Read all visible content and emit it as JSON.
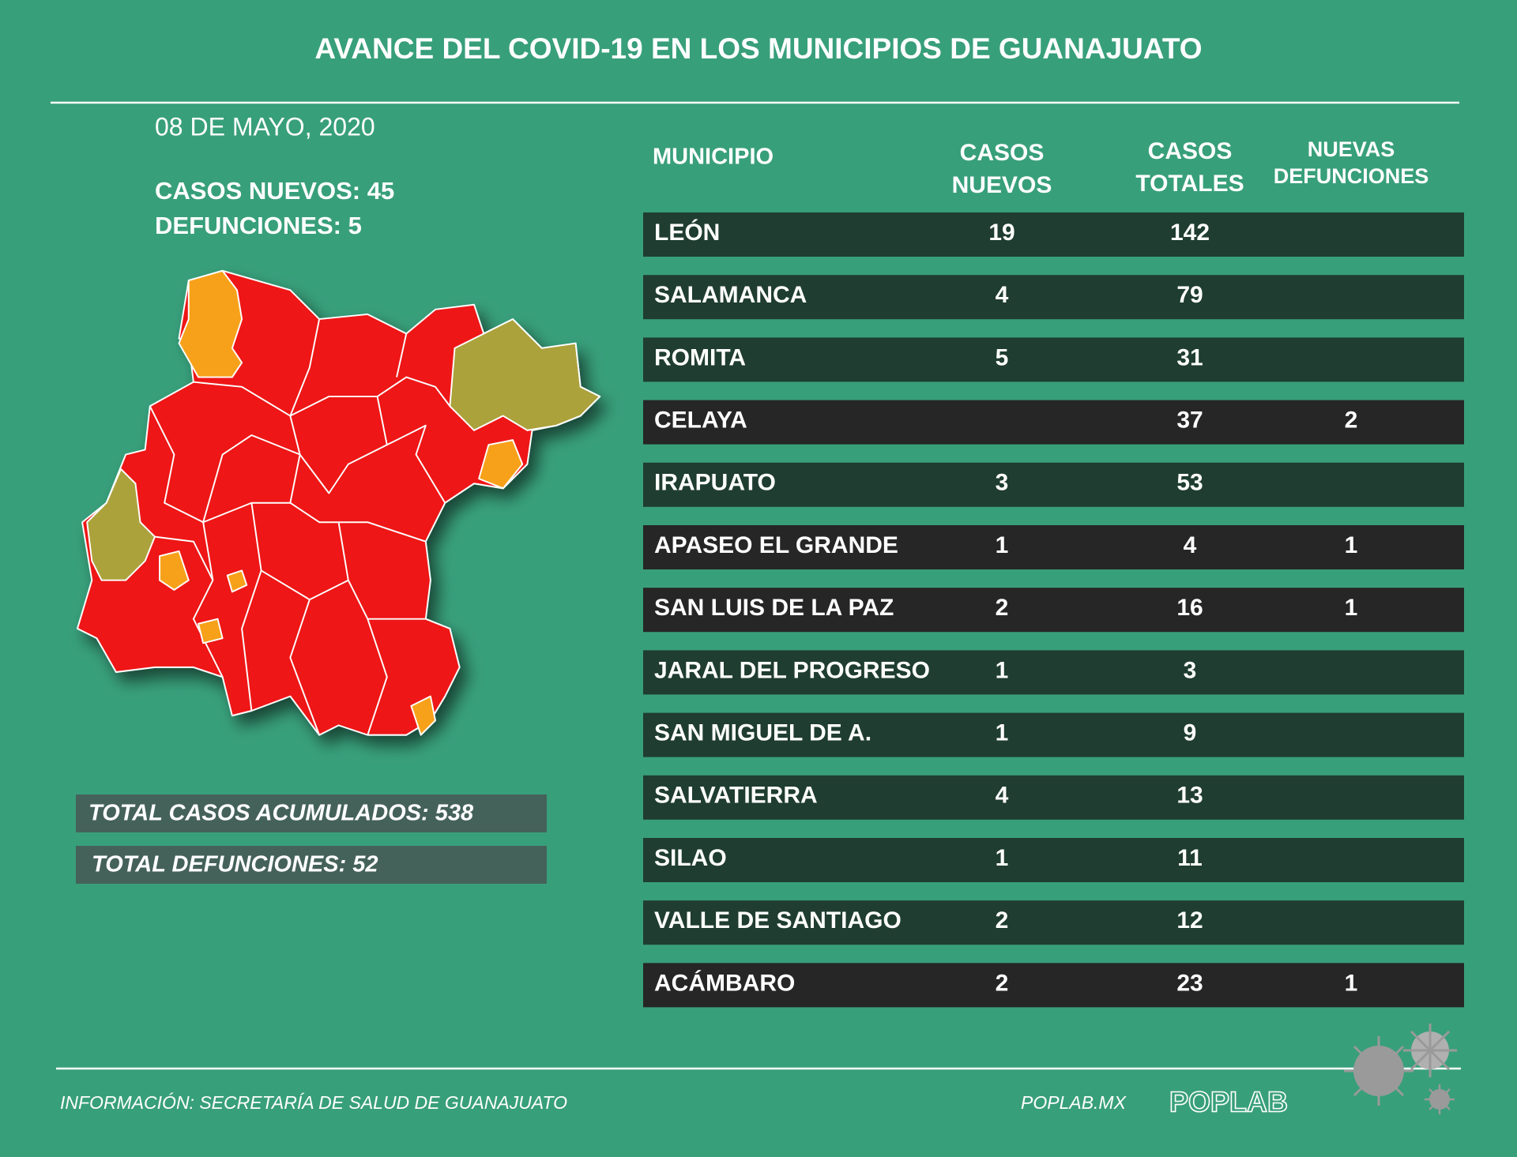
{
  "header": {
    "title": "AVANCE DEL COVID-19 EN LOS MUNICIPIOS DE GUANAJUATO"
  },
  "summary": {
    "date": "08 DE MAYO, 2020",
    "new_cases": "CASOS NUEVOS: 45",
    "deaths": "DEFUNCIONES: 5"
  },
  "table": {
    "headers": [
      [
        "MUNICIPIO"
      ],
      [
        "CASOS",
        "NUEVOS"
      ],
      [
        "CASOS",
        "TOTALES"
      ],
      [
        "NUEVAS",
        "DEFUNCIONES"
      ]
    ],
    "rows": [
      {
        "cells": [
          "LEÓN",
          19,
          142,
          null
        ],
        "color": "#1f3d30"
      },
      {
        "cells": [
          "SALAMANCA",
          4,
          79,
          null
        ],
        "color": "#1f3d30"
      },
      {
        "cells": [
          "ROMITA",
          5,
          31,
          null
        ],
        "color": "#1f3d30"
      },
      {
        "cells": [
          "CELAYA",
          null,
          37,
          2
        ],
        "color": "#262626"
      },
      {
        "cells": [
          "IRAPUATO",
          3,
          53,
          null
        ],
        "color": "#1f3d30"
      },
      {
        "cells": [
          "APASEO EL GRANDE",
          1,
          4,
          1
        ],
        "color": "#262626"
      },
      {
        "cells": [
          "SAN LUIS DE LA PAZ",
          2,
          16,
          1
        ],
        "color": "#262626"
      },
      {
        "cells": [
          "JARAL DEL PROGRESO",
          1,
          3,
          null
        ],
        "color": "#1f3d30"
      },
      {
        "cells": [
          "SAN MIGUEL DE A.",
          1,
          9,
          null
        ],
        "color": "#1f3d30"
      },
      {
        "cells": [
          "SALVATIERRA",
          4,
          13,
          null
        ],
        "color": "#1f3d30"
      },
      {
        "cells": [
          "SILAO",
          1,
          11,
          null
        ],
        "color": "#1f3d30"
      },
      {
        "cells": [
          "VALLE DE SANTIAGO",
          2,
          12,
          null
        ],
        "color": "#1f3d30"
      },
      {
        "cells": [
          "ACÁMBARO",
          2,
          23,
          1
        ],
        "color": "#262626"
      }
    ]
  },
  "totals": [
    "TOTAL CASOS ACUMULADOS: 538",
    "TOTAL DEFUNCIONES: 52"
  ],
  "footer": {
    "source": "INFORMACIÓN: SECRETARÍA DE SALUD DE GUANAJUATO",
    "url": "POPLAB.MX",
    "logo": "POPLAB"
  }
}
